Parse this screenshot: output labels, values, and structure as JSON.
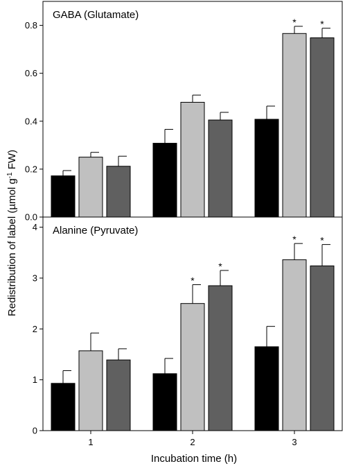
{
  "chart_data": [
    {
      "type": "bar",
      "title": "GABA (Glutamate)",
      "categories": [
        "1",
        "2",
        "3"
      ],
      "ylim": [
        0,
        0.9
      ],
      "yticks": [
        "0.0",
        "0.2",
        "0.4",
        "0.6",
        "0.8"
      ],
      "series": [
        {
          "color": "#000000",
          "values": [
            0.172,
            0.308,
            0.408
          ],
          "errors": [
            0.022,
            0.058,
            0.055
          ],
          "significant": [
            false,
            false,
            false
          ]
        },
        {
          "color": "#c0c0c0",
          "values": [
            0.25,
            0.479,
            0.766
          ],
          "errors": [
            0.02,
            0.03,
            0.03
          ],
          "significant": [
            false,
            false,
            true
          ]
        },
        {
          "color": "#606060",
          "values": [
            0.212,
            0.405,
            0.748
          ],
          "errors": [
            0.042,
            0.032,
            0.04
          ],
          "significant": [
            false,
            false,
            true
          ]
        }
      ],
      "marker": "*"
    },
    {
      "type": "bar",
      "title": "Alanine (Pyruvate)",
      "categories": [
        "1",
        "2",
        "3"
      ],
      "ylim": [
        0,
        4.2
      ],
      "yticks": [
        "0",
        "1",
        "2",
        "3",
        "4"
      ],
      "series": [
        {
          "color": "#000000",
          "values": [
            0.93,
            1.12,
            1.65
          ],
          "errors": [
            0.25,
            0.3,
            0.4
          ],
          "significant": [
            false,
            false,
            false
          ]
        },
        {
          "color": "#c0c0c0",
          "values": [
            1.57,
            2.5,
            3.36
          ],
          "errors": [
            0.35,
            0.37,
            0.32
          ],
          "significant": [
            false,
            true,
            true
          ]
        },
        {
          "color": "#606060",
          "values": [
            1.39,
            2.85,
            3.24
          ],
          "errors": [
            0.22,
            0.3,
            0.42
          ],
          "significant": [
            false,
            true,
            true
          ]
        }
      ],
      "marker": "*"
    }
  ],
  "xlabel": "Incubation time (h)",
  "ylabel": "Redistribution of label (µmol g-1 FW)",
  "ylabel_parts": {
    "before": "Redistribution of label (µmol g",
    "sup": "-1",
    "after": " FW)"
  }
}
